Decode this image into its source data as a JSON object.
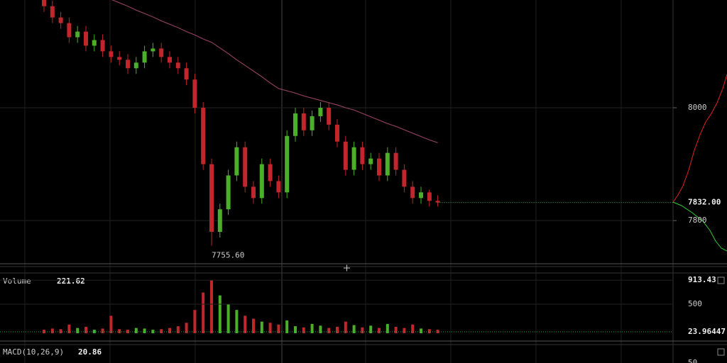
{
  "chart_data": {
    "type": "candlestick",
    "up_color": "#4caf2a",
    "down_color": "#c0262c",
    "ylim": [
      7726,
      8191
    ],
    "yticks": [
      7800,
      8000
    ],
    "grid": true,
    "last_price": {
      "value": 7832,
      "label": "7832.00"
    },
    "low_annotation": {
      "value": 7755.6,
      "label": "7755.60",
      "index": 20
    },
    "open": [
      8195,
      8180,
      8160,
      8150,
      8125,
      8135,
      8110,
      8120,
      8100,
      8090,
      8085,
      8070,
      8080,
      8100,
      8105,
      8090,
      8080,
      8070,
      8050,
      8000,
      7900,
      7780,
      7820,
      7880,
      7930,
      7860,
      7840,
      7900,
      7870,
      7850,
      7950,
      7990,
      7960,
      7985,
      8000,
      7970,
      7940,
      7890,
      7930,
      7900,
      7910,
      7880,
      7920,
      7890,
      7860,
      7840,
      7850,
      7835
    ],
    "high": [
      8205,
      8190,
      8170,
      8160,
      8145,
      8145,
      8130,
      8130,
      8110,
      8100,
      8095,
      8090,
      8110,
      8115,
      8115,
      8100,
      8090,
      8080,
      8060,
      8010,
      7910,
      7830,
      7890,
      7940,
      7940,
      7870,
      7910,
      7910,
      7880,
      7960,
      8000,
      8000,
      7995,
      8010,
      8010,
      7980,
      7950,
      7940,
      7940,
      7920,
      7920,
      7930,
      7930,
      7900,
      7870,
      7860,
      7855,
      7845
    ],
    "low": [
      8170,
      8150,
      8140,
      8115,
      8115,
      8100,
      8100,
      8090,
      8080,
      8075,
      8060,
      8060,
      8070,
      8090,
      8080,
      8070,
      8060,
      8040,
      7990,
      7890,
      7755.6,
      7770,
      7810,
      7870,
      7850,
      7830,
      7830,
      7860,
      7840,
      7840,
      7940,
      7950,
      7950,
      7975,
      7960,
      7930,
      7880,
      7880,
      7890,
      7890,
      7870,
      7870,
      7880,
      7850,
      7830,
      7830,
      7825,
      7825
    ],
    "close": [
      8180,
      8160,
      8150,
      8125,
      8135,
      8110,
      8120,
      8100,
      8090,
      8085,
      8070,
      8080,
      8100,
      8105,
      8090,
      8080,
      8070,
      8050,
      8000,
      7900,
      7780,
      7820,
      7880,
      7930,
      7860,
      7840,
      7900,
      7870,
      7850,
      7950,
      7990,
      7960,
      7985,
      8000,
      7970,
      7940,
      7890,
      7930,
      7900,
      7910,
      7880,
      7920,
      7890,
      7860,
      7840,
      7850,
      7835,
      7832
    ],
    "moving_average": {
      "color": "#8a3d5c",
      "values": [
        null,
        null,
        null,
        null,
        null,
        null,
        null,
        null,
        8192,
        8186,
        8180,
        8173,
        8167,
        8161,
        8154,
        8148,
        8142,
        8135,
        8129,
        8122,
        8116,
        8106,
        8096,
        8085,
        8075,
        8065,
        8055,
        8044,
        8034,
        8030,
        8026,
        8021,
        8017,
        8013,
        8009,
        8005,
        8000,
        7996,
        7990,
        7984,
        7978,
        7972,
        7967,
        7961,
        7955,
        7949,
        7943,
        7938
      ]
    },
    "volume": {
      "label": "Volume",
      "value_label": "221.62",
      "ylim": [
        0,
        1000
      ],
      "yticks": [
        {
          "value": 23.964474,
          "label": "23.96447"
        },
        500,
        {
          "value": 913.43,
          "label": "913.43"
        }
      ],
      "values": [
        60,
        80,
        70,
        150,
        90,
        110,
        60,
        80,
        300,
        70,
        60,
        90,
        80,
        60,
        70,
        90,
        120,
        180,
        400,
        700,
        913.43,
        650,
        500,
        400,
        300,
        250,
        200,
        180,
        150,
        220,
        120,
        100,
        160,
        130,
        90,
        110,
        200,
        140,
        100,
        130,
        90,
        160,
        110,
        90,
        150,
        80,
        70,
        60
      ]
    },
    "macd": {
      "label": "MACD(10,26,9)",
      "value_label": "20.86",
      "yticks": [
        50
      ]
    }
  }
}
